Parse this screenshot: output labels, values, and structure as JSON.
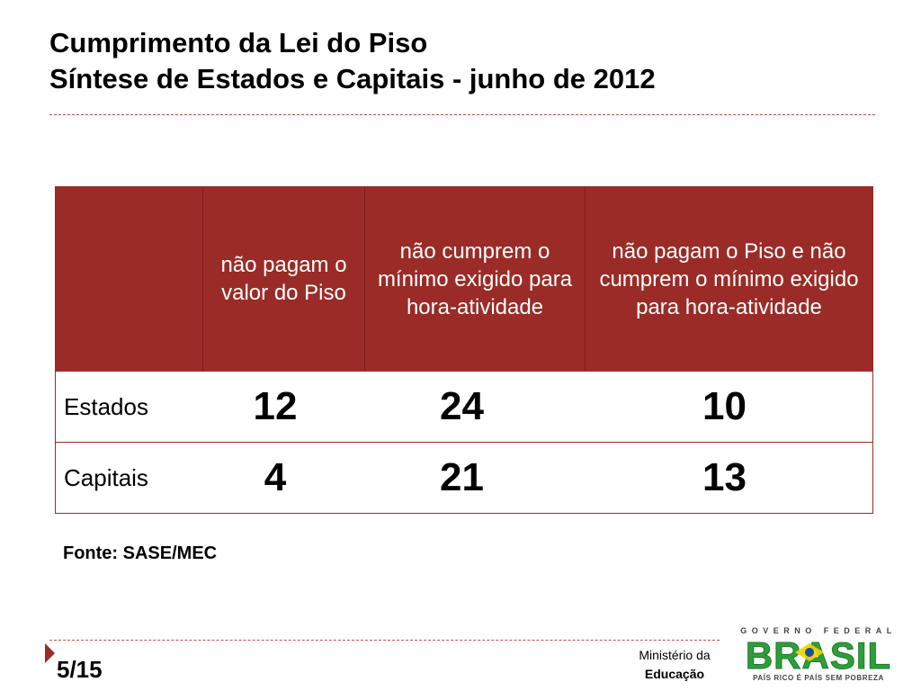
{
  "slide": {
    "title_line1": "Cumprimento da Lei do Piso",
    "title_line2": "Síntese de Estados e Capitais - junho de 2012"
  },
  "table": {
    "columns": [
      "",
      "não pagam o valor do Piso",
      "não cumprem o mínimo exigido para hora-atividade",
      "não pagam o Piso e não cumprem o mínimo exigido para hora-atividade"
    ],
    "rows": [
      {
        "label": "Estados",
        "values": [
          "12",
          "24",
          "10"
        ]
      },
      {
        "label": "Capitais",
        "values": [
          "4",
          "21",
          "13"
        ]
      }
    ]
  },
  "source": "Fonte: SASE/MEC",
  "footer": {
    "page": "5/15",
    "ministry_line1": "Ministério da",
    "ministry_line2": "Educação",
    "logo_top": "GOVERNO FEDERAL",
    "logo_main": "BRASIL",
    "logo_bottom": "PAÍS RICO É PAÍS SEM POBREZA"
  },
  "colors": {
    "accent": "#9b2b26",
    "logo_green": "#2e9e3a",
    "logo_yellow": "#f5d000",
    "logo_blue": "#1b4f9c"
  }
}
